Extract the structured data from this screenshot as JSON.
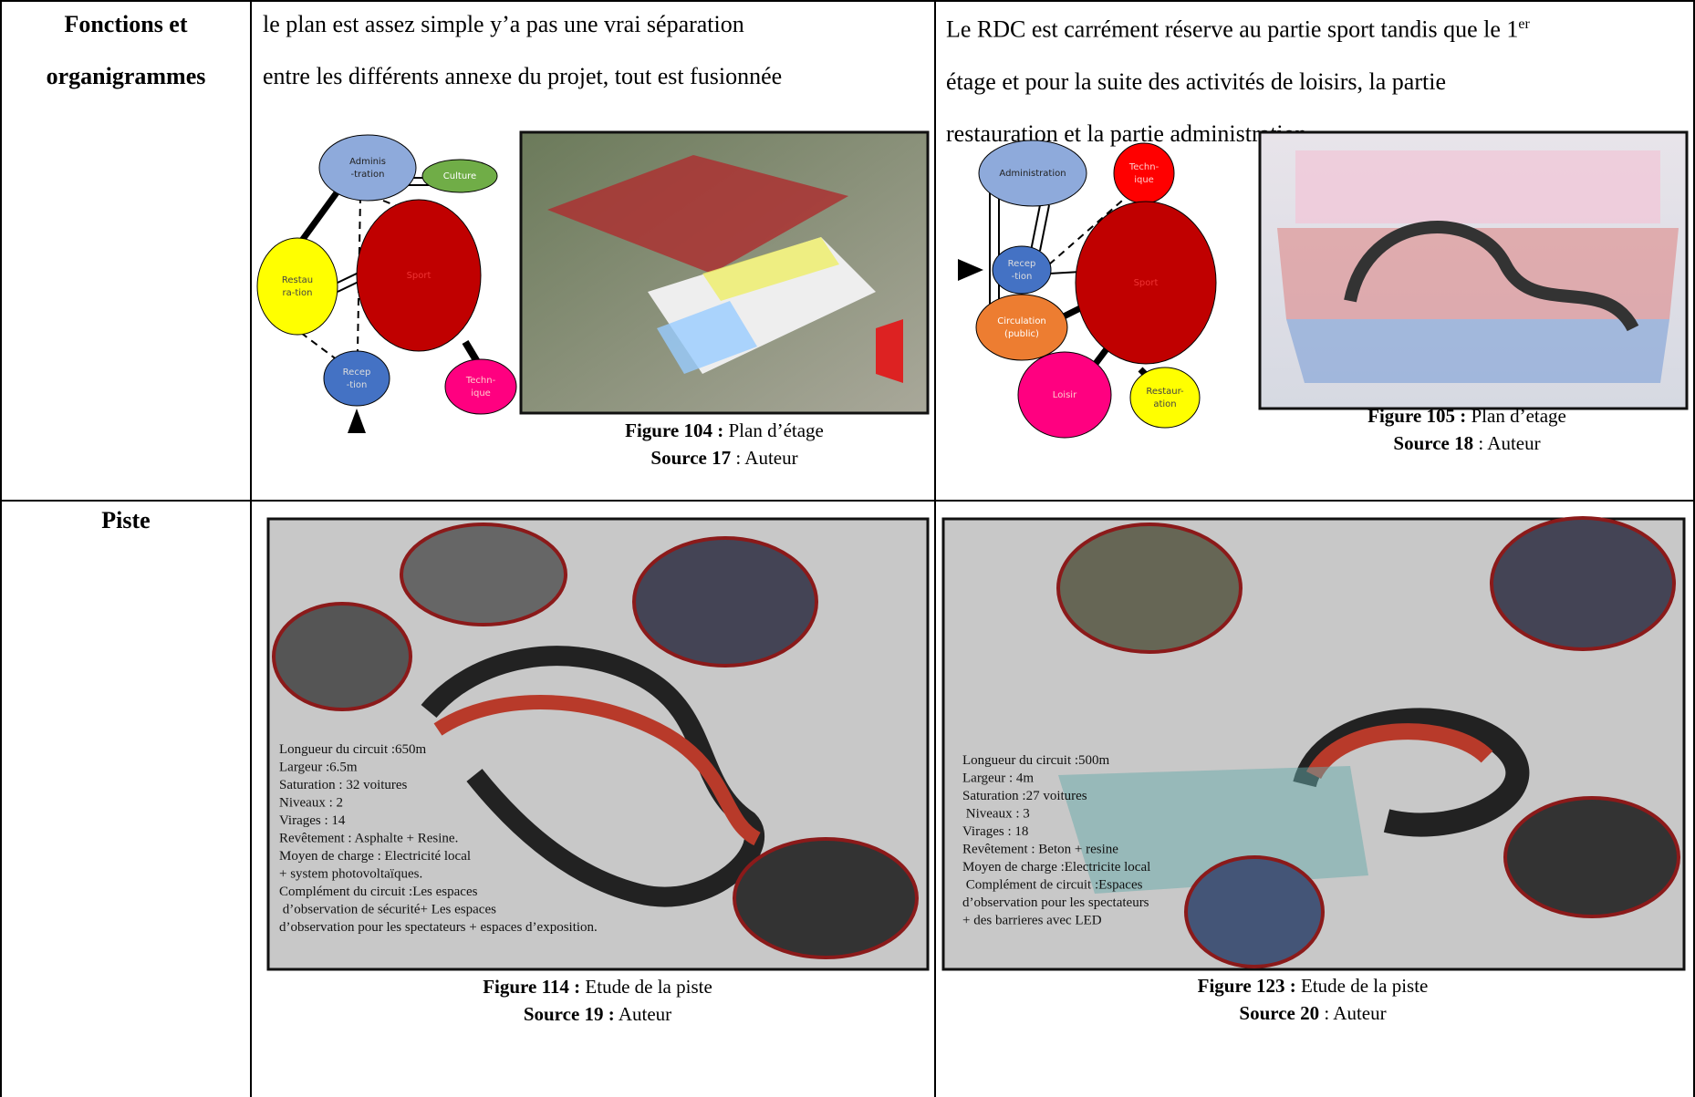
{
  "table": {
    "rows": [
      {
        "header": [
          "Fonctions et",
          "organigrammes"
        ],
        "cells": [
          {
            "lines": [
              "le plan est assez simple y’a pas une vrai séparation",
              "entre les différents annexe du projet, tout est fusionnée"
            ],
            "diagram_nodes": [
              "Adminis -tration",
              "Culture",
              "Restau ra-tion",
              "Sport",
              "Recep -tion",
              "Techn- ique"
            ],
            "figure": {
              "label": "Figure 104 :",
              "text": " Plan d’étage"
            },
            "source": {
              "label": "Source 17",
              "text": " : Auteur"
            }
          },
          {
            "first_line": {
              "text": "Le RDC est carrément réserve au partie sport tandis que le 1",
              "sup": "er"
            },
            "lines": [
              "étage et pour la suite des activités de loisirs, la partie",
              "restauration et la partie administration"
            ],
            "diagram_nodes": [
              "Administration",
              "Techn- ique",
              "Recep -tion",
              "Sport",
              "Circulation (public)",
              "Loisir",
              "Restaur- ation"
            ],
            "figure": {
              "label": "Figure 105 :",
              "text": " Plan d’etage"
            },
            "source": {
              "label": "Source 18",
              "text": " : Auteur"
            }
          }
        ]
      },
      {
        "header": [
          "Piste"
        ],
        "cells": [
          {
            "overlay": [
              "Longueur du circuit :650m",
              "Largeur :6.5m",
              "Saturation : 32 voitures",
              "Niveaux : 2",
              "Virages : 14",
              "Revêtement : Asphalte + Resine.",
              "Moyen de charge : Electricité local",
              "+ system photovoltaïques.",
              "Complément du circuit :Les espaces",
              " d’observation de sécurité+ Les espaces",
              "d’observation pour les spectateurs + espaces d’exposition."
            ],
            "figure": {
              "label": "Figure 114 :",
              "text": " Etude de la piste"
            },
            "source": {
              "label": "Source 19 :",
              "text": " Auteur"
            }
          },
          {
            "overlay": [
              "Longueur du circuit :500m",
              "Largeur : 4m",
              "Saturation :27 voitures",
              " Niveaux : 3",
              "Virages : 18",
              "Revêtement : Beton + resine",
              "Moyen de charge :Electricite local",
              " Complément de circuit :Espaces",
              "d’observation pour les spectateurs",
              "+ des barrieres avec LED"
            ],
            "figure": {
              "label": "Figure 123 :",
              "text": " Etude de la piste"
            },
            "source": {
              "label": "Source 20",
              "text": " : Auteur"
            }
          }
        ]
      }
    ]
  }
}
